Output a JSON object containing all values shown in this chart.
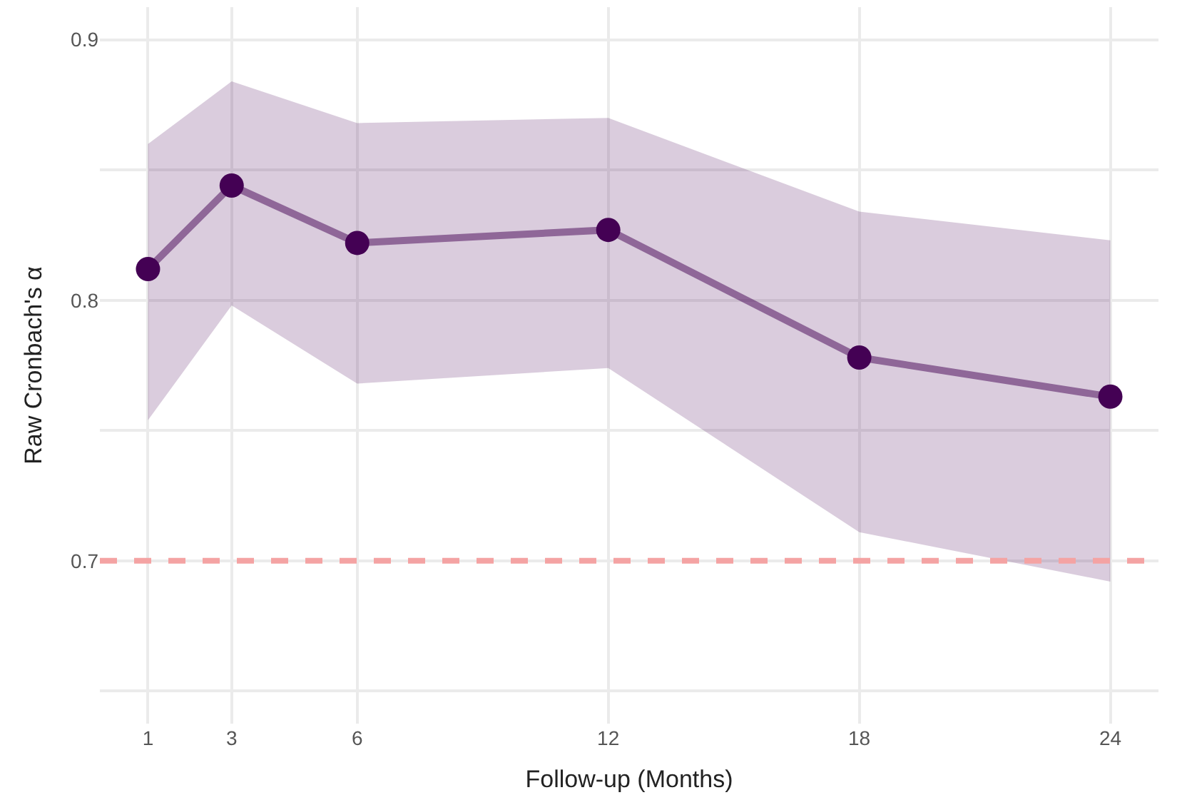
{
  "chart_data": {
    "type": "line",
    "xlabel": "Follow-up (Months)",
    "ylabel": "Raw Cronbach's α",
    "x": [
      1,
      3,
      6,
      12,
      18,
      24
    ],
    "series": [
      {
        "color": "#440154",
        "values": [
          0.812,
          0.844,
          0.822,
          0.827,
          0.778,
          0.763
        ],
        "lower": [
          0.754,
          0.798,
          0.768,
          0.774,
          0.711,
          0.692
        ],
        "upper": [
          0.86,
          0.884,
          0.868,
          0.87,
          0.834,
          0.823
        ]
      }
    ],
    "xlim": [
      -0.15,
      25.15
    ],
    "xticks": [
      1,
      3,
      6,
      12,
      18,
      24
    ],
    "ylim": [
      0.6375,
      0.9125
    ],
    "yticks": [
      {
        "value": 0.65,
        "label": null
      },
      0.7,
      {
        "value": 0.75,
        "label": null
      },
      0.8,
      {
        "value": 0.85,
        "label": null
      },
      0.9
    ],
    "ref_lines": [
      {
        "axis": "y",
        "value": 0.7,
        "color": "#f4a3a3",
        "line_style": "dashed"
      }
    ],
    "marker": "circle",
    "grid": true
  }
}
